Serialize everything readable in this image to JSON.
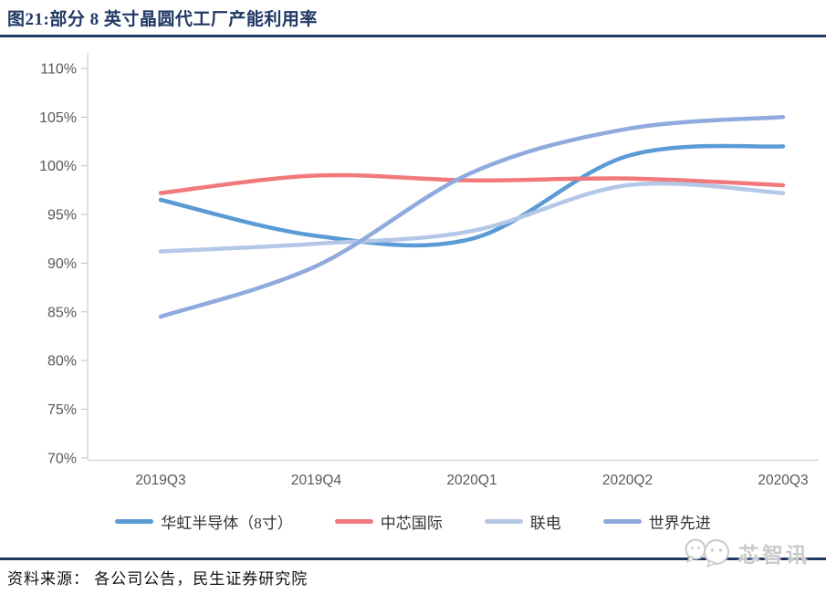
{
  "header": {
    "title": "图21:部分 8 英寸晶圆代工厂产能利用率"
  },
  "chart_data": {
    "type": "line",
    "title": "部分 8 英寸晶圆代工厂产能利用率",
    "categories": [
      "2019Q3",
      "2019Q4",
      "2020Q1",
      "2020Q2",
      "2020Q3"
    ],
    "series": [
      {
        "name": "华虹半导体（8寸）",
        "color": "#5B9BD5",
        "values": [
          96.5,
          92.8,
          92.5,
          101.0,
          102.0
        ]
      },
      {
        "name": "中芯国际",
        "color": "#F1797B",
        "values": [
          97.2,
          99.0,
          98.5,
          98.7,
          98.0
        ]
      },
      {
        "name": "联电",
        "color": "#B4C7E7",
        "values": [
          91.2,
          92.0,
          93.3,
          98.0,
          97.2
        ]
      },
      {
        "name": "世界先进",
        "color": "#8FAADC",
        "values": [
          84.5,
          89.7,
          99.3,
          103.8,
          105.0
        ]
      }
    ],
    "ylim": [
      70,
      110
    ],
    "ytick_values": [
      110,
      105,
      100,
      95,
      90,
      85,
      80,
      75,
      70
    ],
    "yticks": [
      "110%",
      "105%",
      "100%",
      "95%",
      "90%",
      "85%",
      "80%",
      "75%",
      "70%"
    ],
    "unit": "%",
    "grid": false,
    "legend_position": "bottom",
    "line_smoothing": true
  },
  "footer": {
    "source": "资料来源： 各公司公告，民生证券研究院"
  },
  "watermark": {
    "text": "芯智讯",
    "icon": "wechat-chat-bubbles-icon"
  },
  "colors": {
    "accent_navy": "#1F3864",
    "axis_line": "#D9D9D9",
    "tick_mark": "#BFBFBF",
    "axis_text": "#595959"
  }
}
